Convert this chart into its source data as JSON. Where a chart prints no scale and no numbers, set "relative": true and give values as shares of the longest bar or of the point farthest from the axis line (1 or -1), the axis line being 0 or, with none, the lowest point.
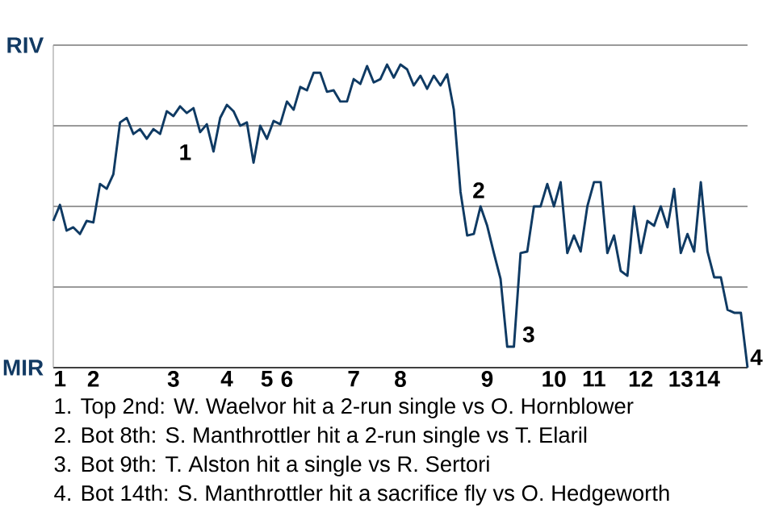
{
  "chart_data": {
    "type": "line",
    "relative": true,
    "categories": [
      null,
      "1",
      null,
      null,
      null,
      null,
      "2",
      null,
      null,
      null,
      null,
      null,
      null,
      null,
      null,
      null,
      null,
      null,
      "3",
      null,
      null,
      null,
      null,
      null,
      null,
      null,
      "4",
      null,
      null,
      null,
      null,
      null,
      "5",
      null,
      null,
      "6",
      null,
      null,
      null,
      null,
      null,
      null,
      null,
      null,
      null,
      "7",
      null,
      null,
      null,
      null,
      null,
      null,
      "8",
      null,
      null,
      null,
      null,
      null,
      null,
      null,
      null,
      null,
      null,
      null,
      null,
      "9",
      null,
      null,
      null,
      null,
      null,
      null,
      null,
      null,
      null,
      "10",
      null,
      null,
      null,
      null,
      null,
      "11",
      null,
      null,
      null,
      null,
      null,
      null,
      "12",
      null,
      null,
      null,
      null,
      null,
      "13",
      null,
      null,
      null,
      "14",
      null,
      null,
      null,
      null,
      null,
      null
    ],
    "series": [
      {
        "color": "#0f3a63",
        "values": [
          0.484,
          0.537,
          0.452,
          0.463,
          0.441,
          0.484,
          0.479,
          0.606,
          0.59,
          0.638,
          0.809,
          0.824,
          0.771,
          0.787,
          0.755,
          0.787,
          0.771,
          0.846,
          0.83,
          0.862,
          0.84,
          0.856,
          0.777,
          0.803,
          0.713,
          0.824,
          0.867,
          0.846,
          0.798,
          0.809,
          0.676,
          0.798,
          0.755,
          0.814,
          0.803,
          0.878,
          0.851,
          0.926,
          0.915,
          0.973,
          0.973,
          0.91,
          0.915,
          0.878,
          0.878,
          0.952,
          0.936,
          0.995,
          0.941,
          0.952,
          1,
          0.957,
          1,
          0.984,
          0.931,
          0.963,
          0.92,
          0.963,
          0.931,
          0.968,
          0.851,
          0.58,
          0.436,
          0.441,
          0.532,
          0.468,
          0.378,
          0.293,
          0.069,
          0.069,
          0.378,
          0.383,
          0.532,
          0.532,
          0.606,
          0.532,
          0.612,
          0.378,
          0.436,
          0.383,
          0.532,
          0.612,
          0.612,
          0.378,
          0.436,
          0.319,
          0.303,
          0.532,
          0.378,
          0.484,
          0.468,
          0.532,
          0.463,
          0.59,
          0.378,
          0.441,
          0.383,
          0.612,
          0.383,
          0.298,
          0.298,
          0.191,
          0.181,
          0.181,
          0
        ]
      }
    ],
    "grid": "y",
    "annotations": [
      "RIV",
      "MIR",
      "1",
      "2",
      "3",
      "4",
      "1. Top 2nd: W. Waelvor hit a 2-run single vs O. Hornblower",
      "2. Bot 8th: S. Manthrottler hit a 2-run single vs T. Elaril",
      "3. Bot 9th: T. Alston hit a single vs R. Sertori",
      "4. Bot 14th: S. Manthrottler hit a sacrifice fly vs O. Hedgeworth"
    ]
  }
}
